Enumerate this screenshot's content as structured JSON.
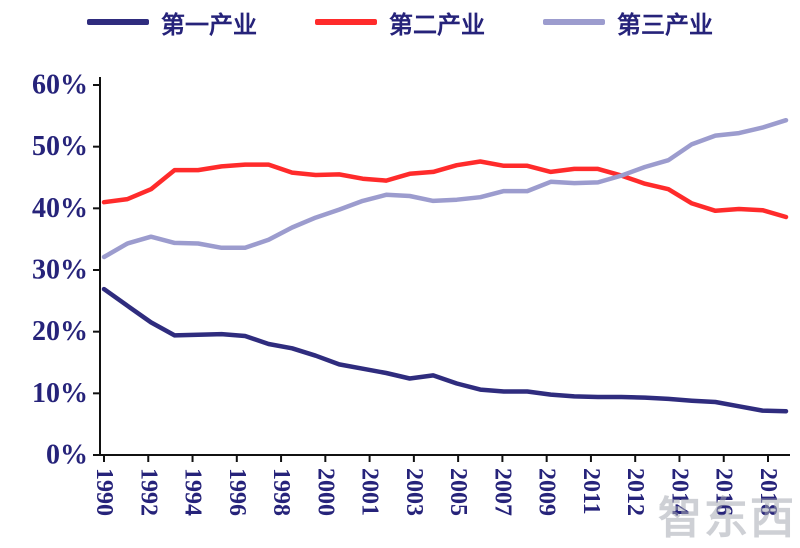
{
  "watermark": "智东西",
  "chart_data": {
    "type": "line",
    "title": "",
    "xlabel": "",
    "ylabel": "",
    "ylim": [
      0,
      60
    ],
    "grid": false,
    "legend_position": "top",
    "axis_color": "#111111",
    "label_color": "#26237A",
    "y_tick_labels": [
      "0%",
      "10%",
      "20%",
      "30%",
      "40%",
      "50%",
      "60%"
    ],
    "x_tick_labels": [
      "1990",
      "1992",
      "1994",
      "1996",
      "1998",
      "2000",
      "2001",
      "2003",
      "2005",
      "2007",
      "2009",
      "2011",
      "2012",
      "2014",
      "2016",
      "2018"
    ],
    "x": [
      1990,
      1991,
      1992,
      1993,
      1994,
      1995,
      1996,
      1997,
      1998,
      1999,
      2000,
      2001,
      2002,
      2003,
      2004,
      2005,
      2006,
      2007,
      2008,
      2009,
      2010,
      2011,
      2012,
      2013,
      2014,
      2015,
      2016,
      2017,
      2018,
      2019
    ],
    "series": [
      {
        "name": "第一产业",
        "color": "#2F2C7E",
        "values": [
          26.9,
          24.2,
          21.5,
          19.4,
          19.5,
          19.6,
          19.3,
          18.0,
          17.3,
          16.1,
          14.7,
          14.0,
          13.3,
          12.4,
          12.9,
          11.6,
          10.6,
          10.3,
          10.3,
          9.8,
          9.5,
          9.4,
          9.4,
          9.3,
          9.1,
          8.8,
          8.6,
          7.9,
          7.2,
          7.1
        ]
      },
      {
        "name": "第二产业",
        "color": "#FF2B2B",
        "values": [
          41.0,
          41.5,
          43.1,
          46.2,
          46.2,
          46.8,
          47.1,
          47.1,
          45.8,
          45.4,
          45.5,
          44.8,
          44.5,
          45.6,
          45.9,
          47.0,
          47.6,
          46.9,
          46.9,
          45.9,
          46.4,
          46.4,
          45.3,
          44.0,
          43.1,
          40.8,
          39.6,
          39.9,
          39.7,
          38.6
        ]
      },
      {
        "name": "第三产业",
        "color": "#9C9CCE",
        "values": [
          32.1,
          34.3,
          35.4,
          34.4,
          34.3,
          33.6,
          33.6,
          34.9,
          36.9,
          38.5,
          39.8,
          41.2,
          42.2,
          42.0,
          41.2,
          41.4,
          41.8,
          42.8,
          42.8,
          44.3,
          44.1,
          44.2,
          45.3,
          46.7,
          47.8,
          50.4,
          51.8,
          52.2,
          53.1,
          54.3
        ]
      }
    ]
  }
}
